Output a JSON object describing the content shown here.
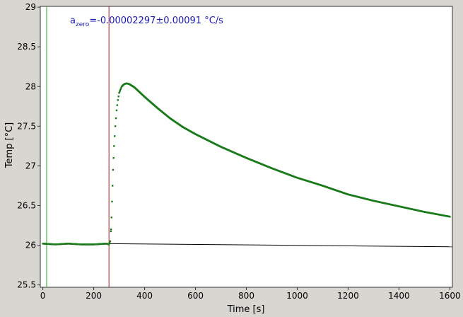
{
  "chart_data": {
    "type": "scatter",
    "xlabel": "Time [s]",
    "ylabel": "Temp [°C]",
    "xlim": [
      -10,
      1610
    ],
    "ylim": [
      25.47,
      29.01
    ],
    "x_ticks": [
      0,
      200,
      400,
      600,
      800,
      1000,
      1200,
      1400,
      1600
    ],
    "x_tick_labels": [
      "0",
      "200",
      "400",
      "600",
      "800",
      "1000",
      "1200",
      "1400",
      "1600"
    ],
    "y_ticks": [
      25.5,
      26,
      26.5,
      27,
      27.5,
      28,
      28.5,
      29
    ],
    "y_tick_labels": [
      "25.5",
      "26",
      "26.5",
      "27",
      "27.5",
      "28",
      "28.5",
      "29"
    ],
    "grid": false,
    "annotation": {
      "base": "a",
      "subscript": "zero",
      "value": "=-0.00002297±0.00091 °C/s"
    },
    "colors": {
      "series": "#1a7a1a",
      "baseline": "#000000",
      "start_marker": "#22aa22",
      "end_marker": "#aa1a2a",
      "annotation": "#1a1ab3",
      "plot_bg": "#ffffff",
      "page_bg": "#d8d6d1"
    },
    "vertical_lines": [
      {
        "name": "start",
        "x": 15
      },
      {
        "name": "end",
        "x": 260
      }
    ],
    "series": [
      {
        "x": [
          0,
          50,
          100,
          150,
          200,
          250,
          260,
          265,
          268,
          270,
          272,
          274,
          276,
          278,
          280,
          285,
          290,
          295,
          300,
          310,
          320,
          330,
          340,
          360,
          380,
          400,
          450,
          500,
          550,
          600,
          650,
          700,
          750,
          800,
          900,
          1000,
          1100,
          1200,
          1300,
          1400,
          1500,
          1600
        ],
        "y": [
          26.02,
          26.01,
          26.02,
          26.01,
          26.01,
          26.02,
          26.01,
          26.05,
          26.2,
          26.35,
          26.55,
          26.75,
          26.95,
          27.1,
          27.25,
          27.5,
          27.7,
          27.83,
          27.92,
          28.0,
          28.03,
          28.04,
          28.03,
          27.99,
          27.93,
          27.87,
          27.73,
          27.6,
          27.49,
          27.4,
          27.32,
          27.24,
          27.17,
          27.1,
          26.97,
          26.85,
          26.75,
          26.64,
          26.56,
          26.49,
          26.42,
          26.36
        ]
      }
    ],
    "baseline": {
      "x": [
        260,
        1610
      ],
      "y": [
        26.02,
        25.98
      ]
    }
  }
}
